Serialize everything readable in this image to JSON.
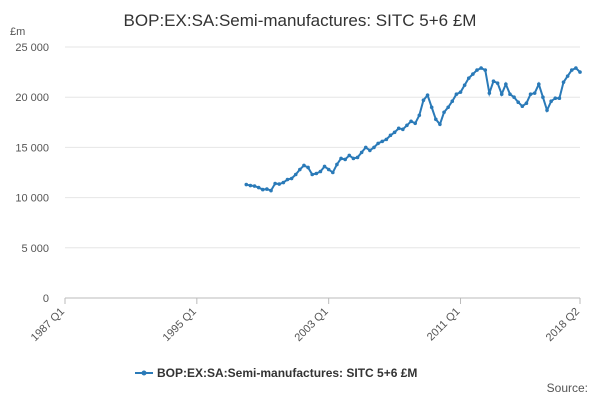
{
  "chart_data": {
    "type": "line",
    "title": "BOP:EX:SA:Semi-manufactures: SITC 5+6 £M",
    "y_label": "£m",
    "source": "Source:",
    "categories": [
      "1987 Q1",
      null,
      null,
      null,
      null,
      null,
      null,
      null,
      null,
      null,
      null,
      null,
      null,
      null,
      null,
      null,
      null,
      null,
      null,
      null,
      null,
      null,
      null,
      null,
      null,
      null,
      null,
      null,
      null,
      null,
      null,
      null,
      "1995 Q1",
      null,
      null,
      null,
      null,
      null,
      null,
      null,
      null,
      null,
      null,
      null,
      null,
      null,
      null,
      null,
      null,
      null,
      null,
      null,
      null,
      null,
      null,
      null,
      null,
      null,
      null,
      null,
      null,
      null,
      null,
      null,
      "2003 Q1",
      null,
      null,
      null,
      null,
      null,
      null,
      null,
      null,
      null,
      null,
      null,
      null,
      null,
      null,
      null,
      null,
      null,
      null,
      null,
      null,
      null,
      null,
      null,
      null,
      null,
      null,
      null,
      null,
      null,
      null,
      null,
      "2011 Q1",
      null,
      null,
      null,
      null,
      null,
      null,
      null,
      null,
      null,
      null,
      null,
      null,
      null,
      null,
      null,
      null,
      null,
      null,
      null,
      null,
      null,
      null,
      null,
      null,
      null,
      null,
      null,
      null,
      "2018 Q2"
    ],
    "series": [
      {
        "name": "BOP:EX:SA:Semi-manufactures: SITC 5+6 £M",
        "color": "#2a7ab8",
        "values": [
          null,
          null,
          null,
          null,
          null,
          null,
          null,
          null,
          null,
          null,
          null,
          null,
          null,
          null,
          null,
          null,
          null,
          null,
          null,
          null,
          null,
          null,
          null,
          null,
          null,
          null,
          null,
          null,
          null,
          null,
          null,
          null,
          null,
          null,
          null,
          null,
          null,
          null,
          null,
          null,
          null,
          null,
          null,
          null,
          11300,
          11200,
          11150,
          11000,
          10800,
          10850,
          10700,
          11400,
          11350,
          11500,
          11800,
          11900,
          12300,
          12800,
          13200,
          13000,
          12300,
          12400,
          12600,
          13100,
          12800,
          12500,
          13300,
          13900,
          13800,
          14200,
          13900,
          14000,
          14500,
          15000,
          14700,
          15000,
          15400,
          15600,
          15800,
          16200,
          16500,
          16900,
          16800,
          17200,
          17600,
          17400,
          18200,
          19700,
          20200,
          19000,
          17800,
          17300,
          18500,
          19000,
          19600,
          20300,
          20500,
          21200,
          21900,
          22300,
          22700,
          22900,
          22700,
          20400,
          21600,
          21400,
          20300,
          21300,
          20300,
          20000,
          19500,
          19100,
          19400,
          20300,
          20400,
          21300,
          20000,
          18700,
          19600,
          19900,
          19900,
          21500,
          22100,
          22700,
          22900,
          22500
        ]
      }
    ],
    "ylim": [
      0,
      25000
    ],
    "yticks": [
      0,
      {
        "value": 5000,
        "label": "5 000"
      },
      {
        "value": 10000,
        "label": "10 000"
      },
      {
        "value": 15000,
        "label": "15 000"
      },
      {
        "value": 20000,
        "label": "20 000"
      },
      {
        "value": 25000,
        "label": "25 000"
      }
    ],
    "grid": true
  }
}
